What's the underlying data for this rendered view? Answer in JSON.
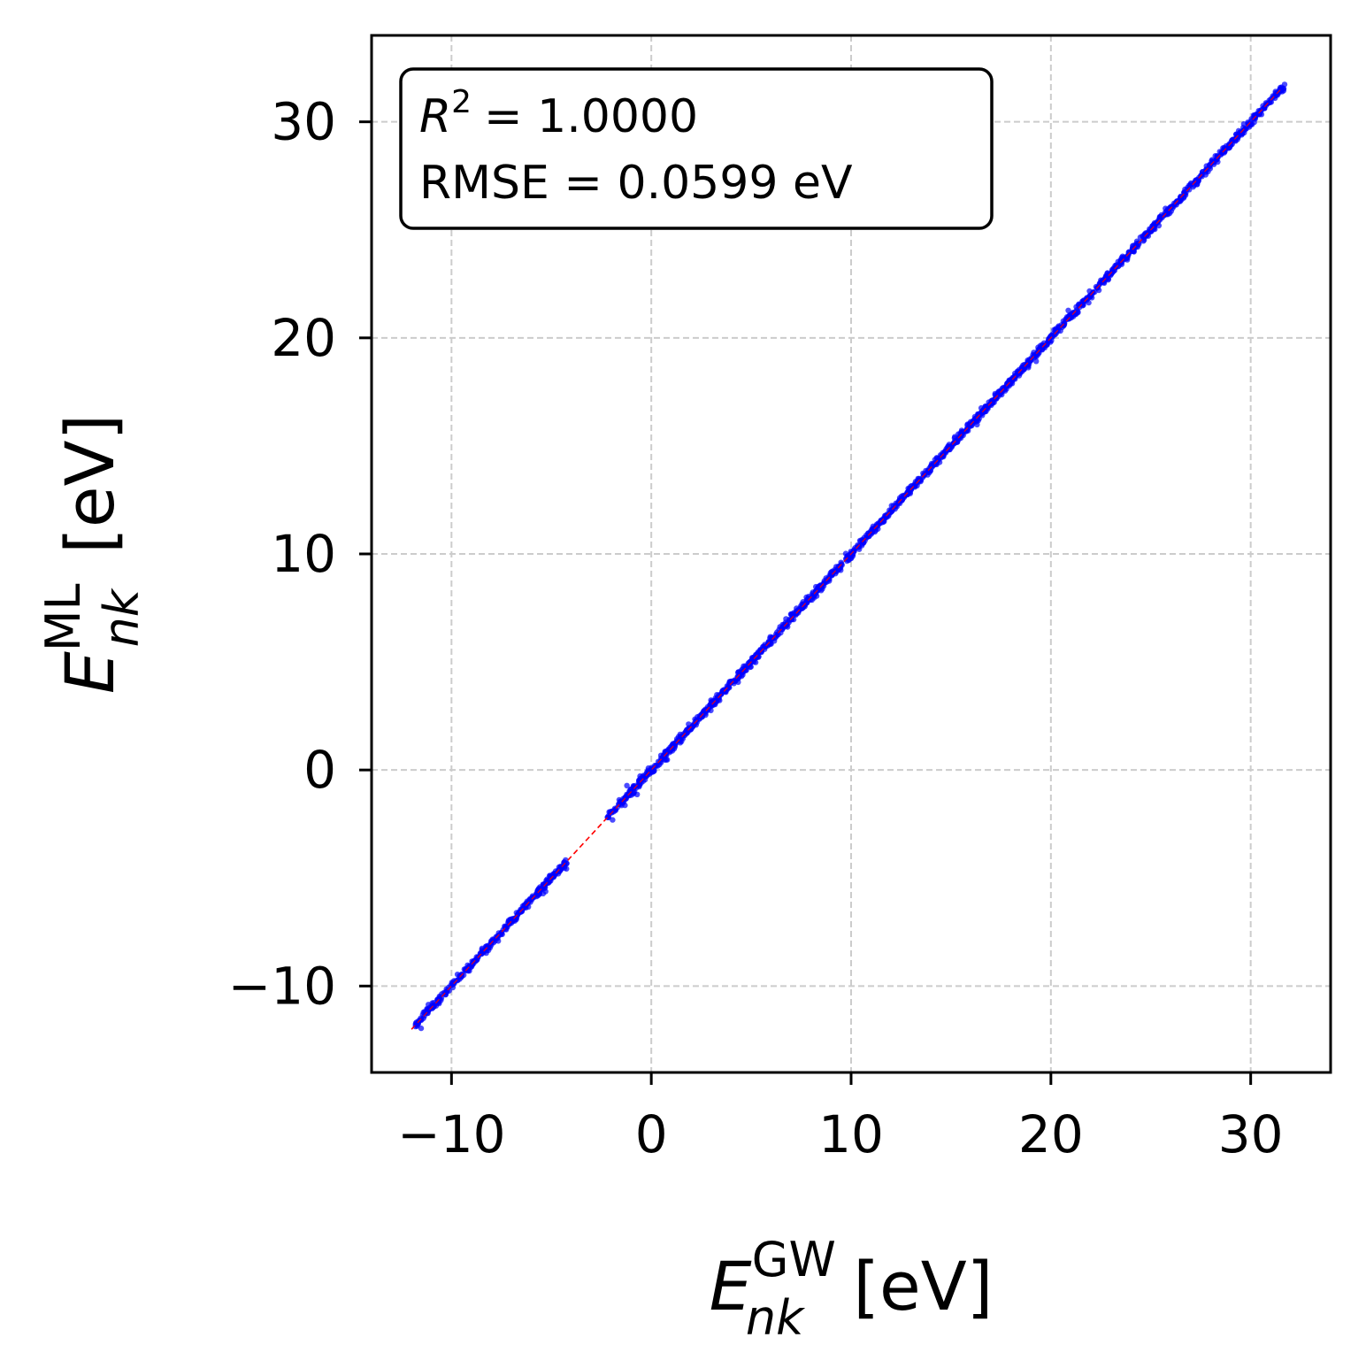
{
  "chart_data": {
    "type": "scatter",
    "title": "",
    "xlabel": {
      "symbol": "E",
      "subscript": "nk",
      "superscript": "GW",
      "unit": "[eV]"
    },
    "ylabel": {
      "symbol": "E",
      "subscript": "nk",
      "superscript": "ML",
      "unit": "[eV]"
    },
    "xlim": [
      -14,
      34
    ],
    "ylim": [
      -14,
      34
    ],
    "xticks": [
      -10,
      0,
      10,
      20,
      30
    ],
    "yticks": [
      -10,
      0,
      10,
      20,
      30
    ],
    "xtick_labels": [
      "−10",
      "0",
      "10",
      "20",
      "30"
    ],
    "ytick_labels": [
      "−10",
      "0",
      "10",
      "20",
      "30"
    ],
    "grid": true,
    "reference_line": {
      "from": [
        -12,
        -12
      ],
      "to": [
        31.5,
        31.5
      ],
      "color": "#ff0000",
      "style": "dashed"
    },
    "point_color": "#0000ff",
    "point_segments": [
      {
        "x_range": [
          -11.8,
          -4.2
        ],
        "spread": 0.25
      },
      {
        "x_range": [
          -2.2,
          31.7
        ],
        "spread": 0.3
      }
    ],
    "annotation": {
      "r2_label": "R",
      "r2_power": "2",
      "r2_value": "= 1.0000",
      "rmse_text": "RMSE = 0.0599 eV",
      "placement": "top-left"
    }
  }
}
